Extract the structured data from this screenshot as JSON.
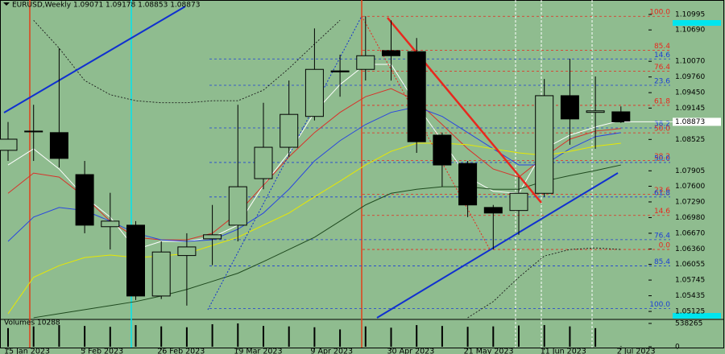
{
  "chart_data": {
    "type": "candlestick",
    "title": "EURUSD,Weekly  1.09071 1.09178 1.08853 1.08873",
    "categories": [
      "15 Jan 2023",
      null,
      null,
      "5 Feb 2023",
      null,
      null,
      "26 Feb 2023",
      null,
      null,
      "19 Mar 2023",
      null,
      null,
      "9 Apr 2023",
      null,
      null,
      "30 Apr 2023",
      null,
      null,
      "21 May 2023",
      null,
      null,
      "11 Jun 2023",
      null,
      null,
      "2 Jul 2023"
    ],
    "open": [
      1.0831,
      1.0869,
      1.0866,
      1.0783,
      1.068,
      1.0683,
      1.0543,
      1.0623,
      1.0656,
      1.0683,
      1.0775,
      1.0837,
      1.0898,
      1.0988,
      1.0991,
      1.1028,
      1.1026,
      1.0861,
      1.0805,
      1.0718,
      1.0712,
      1.0746,
      1.0939,
      1.0906,
      1.09071
    ],
    "high": [
      1.0887,
      1.0921,
      1.1033,
      1.081,
      1.0747,
      1.0691,
      1.0651,
      1.0667,
      1.0723,
      1.0921,
      1.0925,
      1.0969,
      1.1072,
      1.102,
      1.1096,
      1.1088,
      1.1053,
      1.0866,
      1.081,
      1.0723,
      1.0778,
      1.0972,
      1.1012,
      1.0977,
      1.09178
    ],
    "low": [
      1.081,
      1.081,
      1.0797,
      1.0667,
      1.0635,
      1.0535,
      1.0537,
      1.0524,
      1.0604,
      1.0651,
      1.0754,
      1.0818,
      1.089,
      1.0937,
      1.0969,
      1.0969,
      1.0826,
      1.0759,
      1.0699,
      1.0635,
      1.0664,
      1.0739,
      1.0842,
      1.0834,
      1.08853
    ],
    "close": [
      1.0853,
      1.0868,
      1.0815,
      1.0683,
      1.0691,
      1.0543,
      1.063,
      1.064,
      1.0664,
      1.0759,
      1.0837,
      1.0902,
      1.0991,
      1.0986,
      1.1018,
      1.1018,
      1.0848,
      1.0802,
      1.0723,
      1.0707,
      1.0746,
      1.0939,
      1.0893,
      1.0909,
      1.08873
    ],
    "up_color": "#8fbc8f",
    "down_color": "#000000",
    "ylim": [
      1.04999,
      1.11202
    ],
    "yticks": [
      1.10995,
      {
        "value": 1.1069,
        "label": "1.10690"
      },
      {
        "value": 1.1007,
        "label": "1.10070"
      },
      {
        "value": 1.0976,
        "label": "1.09760"
      },
      {
        "value": 1.0945,
        "label": "1.09450"
      },
      1.09145,
      1.08525,
      1.07905,
      {
        "value": 1.076,
        "label": "1.07600"
      },
      {
        "value": 1.0729,
        "label": "1.07290"
      },
      {
        "value": 1.0698,
        "label": "1.06980"
      },
      {
        "value": 1.0667,
        "label": "1.06670"
      },
      {
        "value": 1.0636,
        "label": "1.06360"
      },
      1.06055,
      1.05745,
      1.05435,
      1.05125
    ],
    "last_price": 1.08873,
    "indicators": [
      {
        "color": "#ffffff",
        "style": "solid",
        "values": [
          1.0802,
          1.0834,
          1.0794,
          1.0739,
          1.0699,
          1.0635,
          1.0651,
          1.0651,
          1.0659,
          1.0683,
          1.0762,
          1.0826,
          1.0906,
          1.0961,
          1.1001,
          1.1001,
          1.0921,
          1.085,
          1.0778,
          1.075,
          1.0746,
          1.0834,
          1.0861,
          1.0877,
          1.089
        ]
      },
      {
        "color": "#d8322a",
        "style": "solid",
        "values": [
          1.0746,
          1.0786,
          1.0778,
          1.0739,
          1.0691,
          1.0659,
          1.0654,
          1.0654,
          1.0667,
          1.0707,
          1.0762,
          1.0818,
          1.0866,
          1.0906,
          1.0937,
          1.0953,
          1.0929,
          1.0882,
          1.0834,
          1.0794,
          1.0778,
          1.0818,
          1.0853,
          1.0869,
          1.0874
        ]
      },
      {
        "color": "#2946e0",
        "style": "solid",
        "values": [
          1.0651,
          1.0699,
          1.0718,
          1.0712,
          1.0691,
          1.0667,
          1.0654,
          1.0651,
          1.0654,
          1.0675,
          1.0707,
          1.0754,
          1.081,
          1.085,
          1.0882,
          1.0906,
          1.0917,
          1.0898,
          1.0866,
          1.0834,
          1.0802,
          1.0802,
          1.0834,
          1.0858,
          1.0866
        ]
      },
      {
        "color": "#e8e800",
        "style": "solid",
        "values": [
          1.0508,
          1.058,
          1.0603,
          1.0619,
          1.0624,
          1.0619,
          1.0622,
          1.0627,
          1.0643,
          1.0659,
          1.0683,
          1.0707,
          1.0739,
          1.077,
          1.0802,
          1.0829,
          1.0845,
          1.0845,
          1.0842,
          1.0834,
          1.0826,
          1.0821,
          1.0829,
          1.0839,
          1.0845
        ]
      },
      {
        "color": "#1f4a1f",
        "style": "solid",
        "values": [
          null,
          1.05,
          1.0508,
          1.0516,
          1.0524,
          1.0532,
          1.0543,
          1.0556,
          1.0572,
          1.0588,
          1.0611,
          1.0635,
          1.0659,
          1.0691,
          1.0723,
          1.0746,
          1.0754,
          1.0759,
          1.0759,
          1.0754,
          1.0754,
          1.077,
          1.0781,
          1.0791,
          1.0802
        ]
      },
      {
        "color": "#1a1a1a",
        "style": "dotted",
        "values": [
          null,
          1.1088,
          1.1033,
          1.0969,
          1.0941,
          1.0929,
          1.0925,
          1.0925,
          1.0929,
          1.0929,
          1.095,
          1.0993,
          1.1041,
          1.1088,
          null,
          null,
          null,
          null,
          null,
          null,
          null,
          null,
          null,
          null,
          null
        ]
      },
      {
        "color": "#1a1a1a",
        "style": "dotted",
        "values": [
          null,
          null,
          null,
          null,
          null,
          null,
          null,
          null,
          null,
          null,
          null,
          null,
          null,
          null,
          null,
          null,
          null,
          null,
          1.05,
          1.0532,
          1.058,
          1.0622,
          1.0635,
          1.0638,
          1.0635
        ]
      }
    ],
    "fibo": [
      {
        "color": "#e8281e",
        "from": 1.0635,
        "to": 1.1096,
        "levels": [
          {
            "value": 100,
            "label": "100.0"
          },
          85.4,
          76.4,
          61.8,
          {
            "value": 50,
            "label": "50.0"
          },
          38.2,
          23.6,
          14.6,
          {
            "value": 0,
            "label": "0.0"
          }
        ]
      },
      {
        "color": "#1c3fd6",
        "from": 1.1096,
        "to": 1.0518,
        "levels": [
          14.6,
          23.6,
          38.2,
          {
            "value": 50,
            "label": "50.0"
          },
          61.8,
          76.4,
          85.4,
          {
            "value": 100,
            "label": "100.0"
          }
        ]
      }
    ],
    "volume": {
      "title": "Volumes 10288",
      "color": "#000000",
      "values": [
        430000,
        470000,
        500000,
        480000,
        460000,
        500000,
        470000,
        450000,
        520000,
        538265,
        480000,
        470000,
        450000,
        400000,
        470000,
        440000,
        500000,
        480000,
        460000,
        470000,
        490000,
        500000,
        470000,
        430000,
        10288
      ],
      "ylim": [
        0,
        538265
      ],
      "yticks": [
        0,
        538265
      ]
    }
  }
}
